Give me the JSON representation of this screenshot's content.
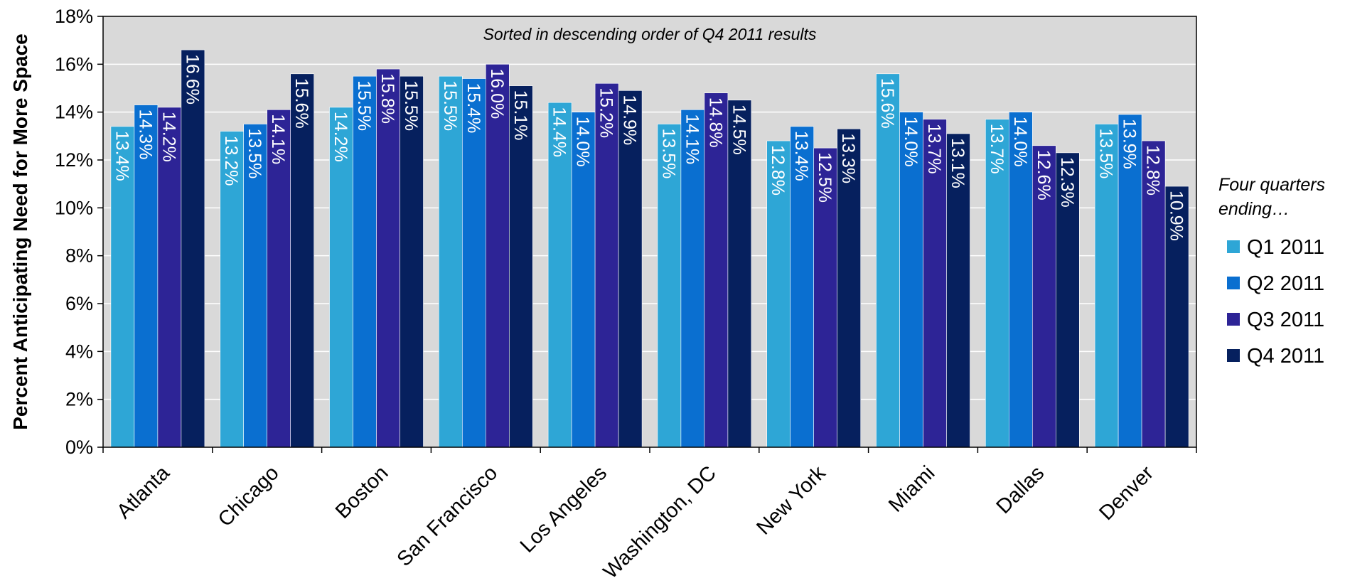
{
  "chart_data": {
    "type": "bar",
    "ylabel": "Percent Anticipating Need for More Space",
    "note": "Sorted in descending order of Q4 2011 results",
    "ylim": [
      0,
      18
    ],
    "yticks": [
      0,
      2,
      4,
      6,
      8,
      10,
      12,
      14,
      16,
      18
    ],
    "ytick_labels": [
      "0%",
      "2%",
      "4%",
      "6%",
      "8%",
      "10%",
      "12%",
      "14%",
      "16%",
      "18%"
    ],
    "grid": true,
    "legend_title": "Four quarters ending…",
    "legend_placement": "right",
    "categories": [
      "Atlanta",
      "Chicago",
      "Boston",
      "San Francisco",
      "Los Angeles",
      "Washington, DC",
      "New York",
      "Miami",
      "Dallas",
      "Denver"
    ],
    "series": [
      {
        "name": "Q1 2011",
        "color": "#2ea6d6",
        "values": [
          13.4,
          13.2,
          14.2,
          15.5,
          14.4,
          13.5,
          12.8,
          15.6,
          13.7,
          13.5
        ],
        "labels": [
          "13.4%",
          "13.2%",
          "14.2%",
          "15.5%",
          "14.4%",
          "13.5%",
          "12.8%",
          "15.6%",
          "13.7%",
          "13.5%"
        ]
      },
      {
        "name": "Q2 2011",
        "color": "#0a6fd0",
        "values": [
          14.3,
          13.5,
          15.5,
          15.4,
          14.0,
          14.1,
          13.4,
          14.0,
          14.0,
          13.9
        ],
        "labels": [
          "14.3%",
          "13.5%",
          "15.5%",
          "15.4%",
          "14.0%",
          "14.1%",
          "13.4%",
          "14.0%",
          "14.0%",
          "13.9%"
        ]
      },
      {
        "name": "Q3 2011",
        "color": "#2d2496",
        "values": [
          14.2,
          14.1,
          15.8,
          16.0,
          15.2,
          14.8,
          12.5,
          13.7,
          12.6,
          12.8
        ],
        "labels": [
          "14.2%",
          "14.1%",
          "15.8%",
          "16.0%",
          "15.2%",
          "14.8%",
          "12.5%",
          "13.7%",
          "12.6%",
          "12.8%"
        ]
      },
      {
        "name": "Q4 2011",
        "color": "#06205e",
        "values": [
          16.6,
          15.6,
          15.5,
          15.1,
          14.9,
          14.5,
          13.3,
          13.1,
          12.3,
          10.9
        ],
        "labels": [
          "16.6%",
          "15.6%",
          "15.5%",
          "15.1%",
          "14.9%",
          "14.5%",
          "13.3%",
          "13.1%",
          "12.3%",
          "10.9%"
        ]
      }
    ]
  }
}
